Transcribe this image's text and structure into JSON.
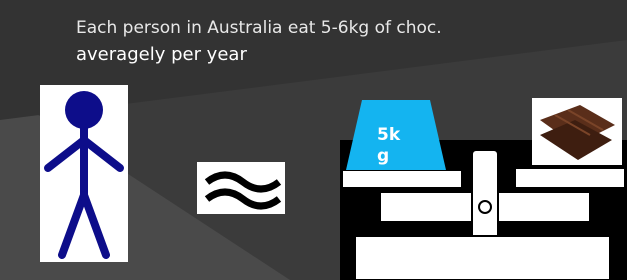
{
  "text": {
    "line1": "Each person in Australia eat 5-6kg of choc.",
    "line2": "averagely per year",
    "weight": "5kg"
  }
}
